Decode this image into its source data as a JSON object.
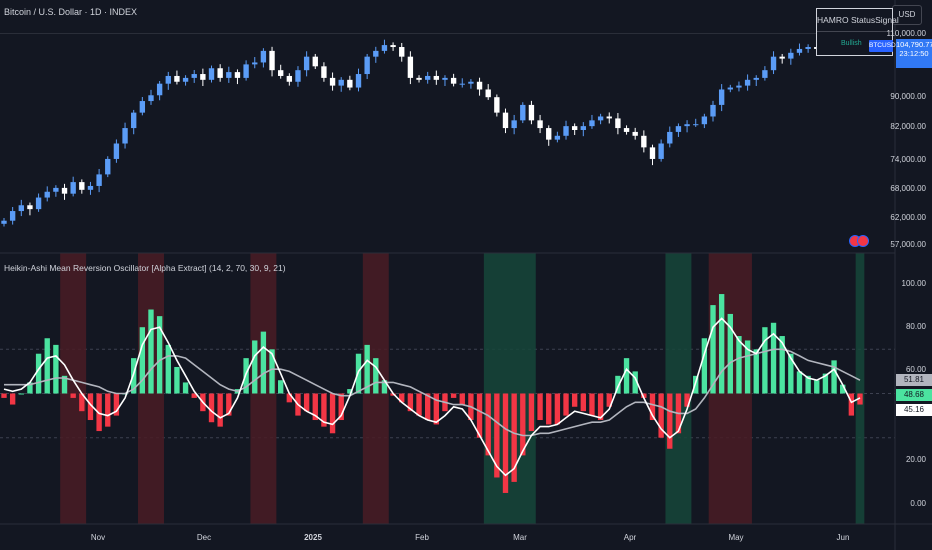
{
  "header": {
    "symbol_title": "Bitcoin / U.S. Dollar · 1D · INDEX",
    "currency_button": "USD"
  },
  "indicator": {
    "title": "Heikin-Ashi Mean Reversion Oscillator [Alpha Extract] (14, 2, 70, 30, 9, 21)"
  },
  "status_table": {
    "col1": "HAMRO Status",
    "col2": "Signal",
    "value": "Bullish"
  },
  "price_scale": {
    "labels": [
      "110,000.00",
      "90,000.00",
      "82,000.00",
      "74,000.00",
      "68,000.00",
      "62,000.00",
      "57,000.00"
    ],
    "last_price": "104,790.77",
    "countdown": "23:12:50",
    "symbol_tag": "BTCUSD"
  },
  "osc_scale": {
    "labels": [
      "100.00",
      "80.00",
      "60.00",
      "20.00",
      "0.00"
    ],
    "tags": [
      "51.81",
      "48.68",
      "45.16"
    ]
  },
  "time_axis": {
    "labels": [
      "Nov",
      "Dec",
      "2025",
      "Feb",
      "Mar",
      "Apr",
      "May",
      "Jun"
    ]
  },
  "colors": {
    "background": "#131722",
    "candle_up": "#5b9cf6",
    "candle_down": "#ffffff",
    "hist_bull": "#4be3a0",
    "hist_bear": "#f23645",
    "osc_line": "#ffffff",
    "signal_line": "#b2b5be",
    "zone_bear": "#4a1c25",
    "zone_bull": "#16463a"
  },
  "chart_data": [
    {
      "type": "candlestick",
      "title": "Bitcoin / U.S. Dollar · 1D · INDEX",
      "ylim": [
        55000,
        112000
      ],
      "close": [
        60000,
        62500,
        64000,
        63000,
        66000,
        67500,
        68500,
        67000,
        70000,
        68000,
        69000,
        72000,
        76000,
        80000,
        84000,
        88000,
        91000,
        92500,
        95500,
        97500,
        96000,
        97000,
        98000,
        96500,
        99500,
        97000,
        98500,
        97000,
        100500,
        101000,
        104000,
        99000,
        97500,
        96000,
        99000,
        102500,
        100000,
        97000,
        95000,
        96500,
        94500,
        98000,
        102500,
        104000,
        105500,
        105000,
        102500,
        97000,
        96500,
        97500,
        96500,
        97000,
        95500,
        95500,
        96000,
        94000,
        92000,
        88000,
        84000,
        86000,
        90000,
        86000,
        84000,
        81000,
        82000,
        84500,
        83500,
        84500,
        86000,
        87000,
        86500,
        84000,
        83000,
        82000,
        79000,
        76000,
        80000,
        83000,
        84500,
        85000,
        85000,
        87000,
        90000,
        94000,
        94500,
        95000,
        96500,
        97000,
        99000,
        102500,
        102000,
        103500,
        104500,
        105000,
        104500,
        108500,
        109000,
        106000,
        105000,
        104790
      ]
    },
    {
      "type": "bar",
      "title": "Heikin-Ashi Mean Reversion Oscillator [Alpha Extract] (14, 2, 70, 30, 9, 21)",
      "ylim": [
        0,
        100
      ],
      "levels": [
        70,
        50,
        30
      ],
      "histogram": [
        48,
        45,
        50,
        55,
        68,
        75,
        72,
        58,
        48,
        42,
        38,
        33,
        35,
        40,
        50,
        66,
        80,
        88,
        85,
        72,
        62,
        55,
        48,
        42,
        37,
        35,
        40,
        52,
        66,
        74,
        78,
        70,
        56,
        46,
        40,
        42,
        38,
        35,
        32,
        38,
        52,
        68,
        72,
        66,
        56,
        49,
        46,
        42,
        40,
        38,
        36,
        42,
        48,
        45,
        38,
        30,
        22,
        12,
        5,
        10,
        22,
        33,
        38,
        36,
        36,
        40,
        44,
        42,
        40,
        38,
        44,
        58,
        66,
        60,
        48,
        38,
        30,
        25,
        32,
        44,
        58,
        75,
        90,
        95,
        86,
        76,
        74,
        70,
        80,
        82,
        76,
        68,
        60,
        58,
        56,
        59,
        65,
        54,
        40,
        45
      ],
      "oscillator": [
        52,
        51,
        52,
        55,
        61,
        66,
        67,
        63,
        56,
        50,
        45,
        41,
        40,
        42,
        48,
        59,
        72,
        79,
        80,
        73,
        65,
        58,
        51,
        46,
        42,
        39,
        41,
        48,
        59,
        67,
        71,
        68,
        59,
        50,
        45,
        42,
        40,
        37,
        36,
        40,
        49,
        60,
        65,
        62,
        56,
        50,
        46,
        43,
        40,
        38,
        37,
        40,
        44,
        43,
        38,
        31,
        24,
        17,
        13,
        16,
        24,
        31,
        35,
        35,
        36,
        39,
        42,
        41,
        40,
        39,
        43,
        53,
        61,
        57,
        48,
        40,
        34,
        30,
        33,
        43,
        55,
        68,
        80,
        84,
        80,
        74,
        70,
        68,
        74,
        77,
        73,
        66,
        60,
        57,
        56,
        58,
        61,
        54,
        46,
        48
      ],
      "signal_line": [
        54,
        54,
        54,
        54,
        55,
        56,
        57,
        57,
        56,
        55,
        54,
        53,
        51,
        50,
        50,
        52,
        56,
        61,
        65,
        67,
        67,
        66,
        63,
        60,
        57,
        54,
        52,
        51,
        53,
        56,
        59,
        61,
        61,
        60,
        58,
        56,
        54,
        52,
        50,
        49,
        49,
        51,
        53,
        55,
        55,
        55,
        54,
        53,
        51,
        49,
        47,
        46,
        45,
        45,
        44,
        42,
        40,
        37,
        34,
        32,
        31,
        31,
        32,
        32,
        33,
        34,
        35,
        36,
        37,
        37,
        38,
        41,
        44,
        46,
        46,
        45,
        44,
        42,
        41,
        41,
        43,
        48,
        54,
        60,
        64,
        66,
        67,
        68,
        69,
        70,
        70,
        69,
        67,
        65,
        64,
        63,
        62,
        60,
        58,
        56
      ],
      "regions": [
        {
          "signal": "bearish",
          "start": 7,
          "end": 9
        },
        {
          "signal": "bearish",
          "start": 16,
          "end": 18
        },
        {
          "signal": "bearish",
          "start": 29,
          "end": 31
        },
        {
          "signal": "bearish",
          "start": 42,
          "end": 44
        },
        {
          "signal": "bullish",
          "start": 56,
          "end": 61
        },
        {
          "signal": "bullish",
          "start": 77,
          "end": 79
        },
        {
          "signal": "bearish",
          "start": 82,
          "end": 86
        },
        {
          "signal": "bullish",
          "start": 99,
          "end": 99
        }
      ]
    }
  ]
}
